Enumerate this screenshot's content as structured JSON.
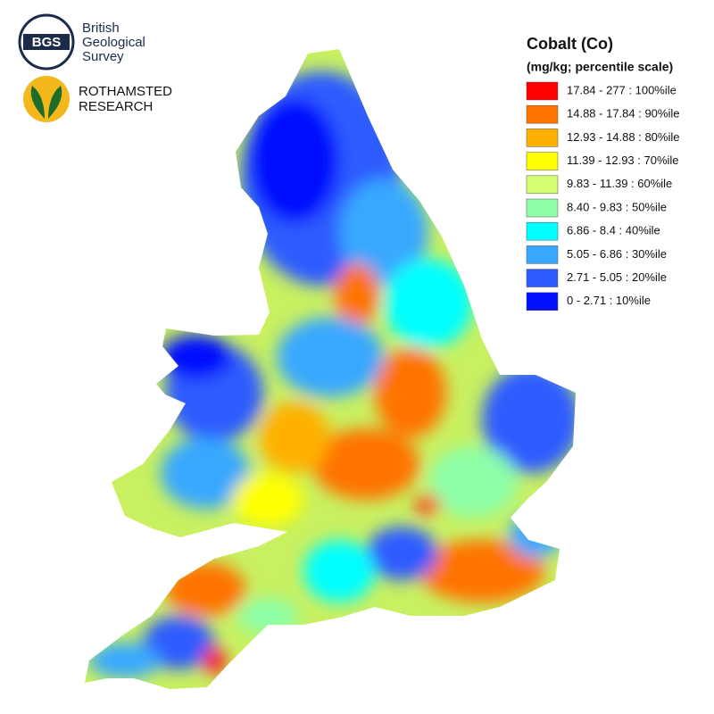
{
  "header": {
    "bgs": {
      "badge": "BGS",
      "lines": [
        "British",
        "Geological",
        "Survey"
      ]
    },
    "rothamsted": {
      "lines": [
        "ROTHAMSTED",
        "RESEARCH"
      ]
    }
  },
  "legend": {
    "title": "Cobalt (Co)",
    "subtitle": "(mg/kg; percentile scale)",
    "entries": [
      {
        "label": "17.84 - 277 : 100%ile",
        "color": "#ff0000"
      },
      {
        "label": "14.88 - 17.84 : 90%ile",
        "color": "#ff7300"
      },
      {
        "label": "12.93 - 14.88 : 80%ile",
        "color": "#ffb000"
      },
      {
        "label": "11.39 - 12.93 : 70%ile",
        "color": "#ffff00"
      },
      {
        "label": "9.83 - 11.39 : 60%ile",
        "color": "#d4ff73"
      },
      {
        "label": "8.40 - 9.83 : 50%ile",
        "color": "#8cffa8"
      },
      {
        "label": "6.86 - 8.4 : 40%ile",
        "color": "#00ffff"
      },
      {
        "label": "5.05 - 6.86 : 30%ile",
        "color": "#38a8ff"
      },
      {
        "label": "2.71 - 5.05 : 20%ile",
        "color": "#2e5cff"
      },
      {
        "label": "0 - 2.71 : 10%ile",
        "color": "#0010ff"
      }
    ]
  }
}
